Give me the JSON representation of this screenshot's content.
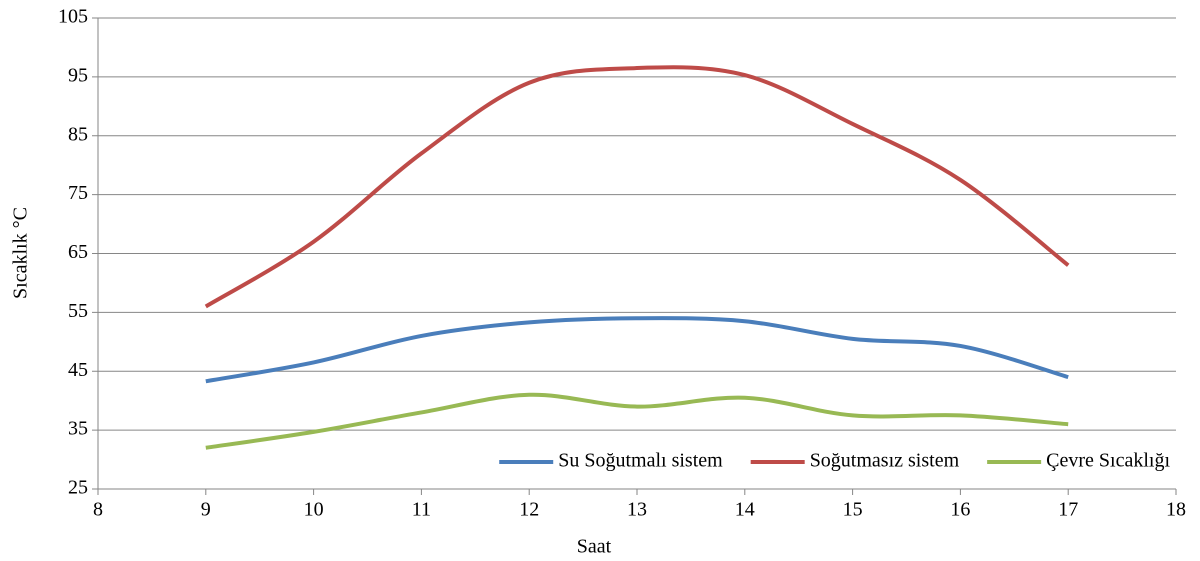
{
  "chart_data": {
    "type": "line",
    "xlabel": "Saat",
    "ylabel": "Sıcaklık  °C",
    "x": [
      9,
      10,
      11,
      12,
      13,
      14,
      15,
      16,
      17
    ],
    "series": [
      {
        "name": "Su Soğutmalı sistem",
        "color": "#4a7ebb",
        "values": [
          43.3,
          46.5,
          51,
          53.3,
          54,
          53.5,
          50.5,
          49.3,
          44
        ]
      },
      {
        "name": "Soğutmasız sistem",
        "color": "#be4b48",
        "values": [
          56,
          67,
          82,
          94,
          96.5,
          95.3,
          87,
          77.5,
          63
        ]
      },
      {
        "name": "Çevre Sıcaklığı",
        "color": "#98b954",
        "values": [
          32,
          34.7,
          38,
          41,
          39,
          40.5,
          37.5,
          37.5,
          36
        ]
      }
    ],
    "xlim": [
      8,
      18
    ],
    "xticks": [
      8,
      9,
      10,
      11,
      12,
      13,
      14,
      15,
      16,
      17,
      18
    ],
    "ylim": [
      25,
      105
    ],
    "yticks": [
      25,
      35,
      45,
      55,
      65,
      75,
      85,
      95,
      105
    ],
    "grid": true,
    "legend": "lower right",
    "smooth": true
  }
}
